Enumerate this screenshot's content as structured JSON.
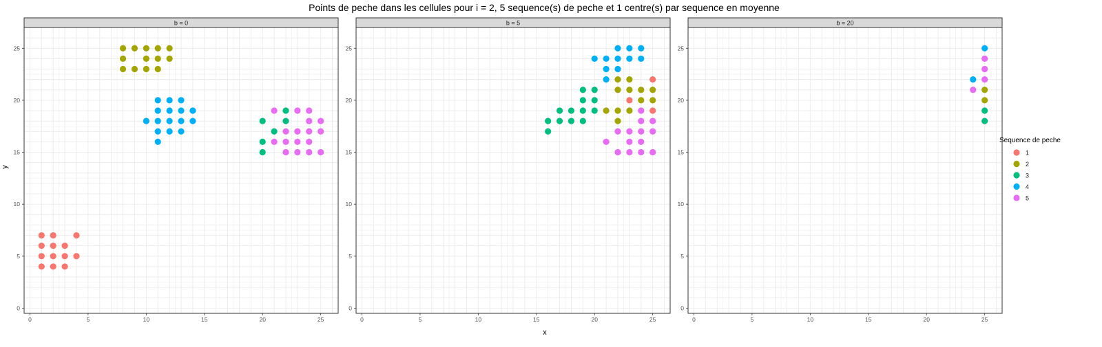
{
  "chart_data": {
    "type": "scatter",
    "title": "Points de peche dans les cellules pour i = 2, 5 sequence(s) de peche et 1 centre(s) par sequence en moyenne",
    "xlabel": "x",
    "ylabel": "y",
    "xlim": [
      -0.5,
      26.5
    ],
    "ylim": [
      -0.5,
      27
    ],
    "x_ticks": [
      0,
      5,
      10,
      15,
      20,
      25
    ],
    "y_ticks": [
      0,
      5,
      10,
      15,
      20,
      25
    ],
    "grid": true,
    "legend": {
      "title": "Sequence de peche",
      "placement": "right",
      "entries": [
        "1",
        "2",
        "3",
        "4",
        "5"
      ]
    },
    "colors": {
      "1": "#F8766D",
      "2": "#A3A500",
      "3": "#00BF7D",
      "4": "#00B0F6",
      "5": "#E76BF3"
    },
    "panels": [
      {
        "label": "b = 0",
        "series": [
          {
            "name": "1",
            "points": [
              [
                1,
                7
              ],
              [
                2,
                7
              ],
              [
                4,
                7
              ],
              [
                1,
                6
              ],
              [
                2,
                6
              ],
              [
                3,
                6
              ],
              [
                1,
                5
              ],
              [
                2,
                5
              ],
              [
                3,
                5
              ],
              [
                4,
                5
              ],
              [
                1,
                4
              ],
              [
                2,
                4
              ],
              [
                3,
                4
              ]
            ]
          },
          {
            "name": "2",
            "points": [
              [
                8,
                25
              ],
              [
                9,
                25
              ],
              [
                10,
                25
              ],
              [
                11,
                25
              ],
              [
                12,
                25
              ],
              [
                8,
                24
              ],
              [
                10,
                24
              ],
              [
                11,
                24
              ],
              [
                12,
                24
              ],
              [
                8,
                23
              ],
              [
                9,
                23
              ],
              [
                10,
                23
              ],
              [
                11,
                23
              ]
            ]
          },
          {
            "name": "4",
            "points": [
              [
                11,
                20
              ],
              [
                12,
                20
              ],
              [
                13,
                20
              ],
              [
                11,
                19
              ],
              [
                12,
                19
              ],
              [
                13,
                19
              ],
              [
                14,
                19
              ],
              [
                10,
                18
              ],
              [
                11,
                18
              ],
              [
                12,
                18
              ],
              [
                13,
                18
              ],
              [
                14,
                18
              ],
              [
                11,
                17
              ],
              [
                12,
                17
              ],
              [
                13,
                17
              ],
              [
                11,
                16
              ]
            ]
          },
          {
            "name": "3",
            "points": [
              [
                20,
                18
              ],
              [
                22,
                18
              ],
              [
                21,
                17
              ],
              [
                20,
                16
              ],
              [
                20,
                15
              ],
              [
                22,
                19
              ]
            ]
          },
          {
            "name": "5",
            "points": [
              [
                21,
                19
              ],
              [
                23,
                19
              ],
              [
                24,
                19
              ],
              [
                24,
                18
              ],
              [
                25,
                18
              ],
              [
                22,
                17
              ],
              [
                23,
                17
              ],
              [
                24,
                17
              ],
              [
                25,
                17
              ],
              [
                21,
                16
              ],
              [
                22,
                16
              ],
              [
                23,
                16
              ],
              [
                24,
                16
              ],
              [
                22,
                15
              ],
              [
                23,
                15
              ],
              [
                24,
                15
              ],
              [
                25,
                15
              ]
            ]
          }
        ]
      },
      {
        "label": "b = 5",
        "series": [
          {
            "name": "4",
            "points": [
              [
                22,
                25
              ],
              [
                23,
                25
              ],
              [
                24,
                25
              ],
              [
                20,
                24
              ],
              [
                21,
                24
              ],
              [
                22,
                24
              ],
              [
                23,
                24
              ],
              [
                24,
                24
              ],
              [
                21,
                23
              ],
              [
                22,
                23
              ],
              [
                21,
                22
              ]
            ]
          },
          {
            "name": "2",
            "points": [
              [
                22,
                22
              ],
              [
                23,
                22
              ],
              [
                22,
                21
              ],
              [
                23,
                21
              ],
              [
                24,
                21
              ],
              [
                25,
                21
              ],
              [
                24,
                20
              ],
              [
                25,
                20
              ],
              [
                21,
                19
              ],
              [
                22,
                19
              ],
              [
                23,
                19
              ],
              [
                22,
                18
              ]
            ]
          },
          {
            "name": "1",
            "points": [
              [
                25,
                22
              ],
              [
                23,
                20
              ],
              [
                25,
                19
              ]
            ]
          },
          {
            "name": "3",
            "points": [
              [
                19,
                21
              ],
              [
                20,
                21
              ],
              [
                19,
                20
              ],
              [
                20,
                20
              ],
              [
                17,
                19
              ],
              [
                18,
                19
              ],
              [
                19,
                19
              ],
              [
                20,
                19
              ],
              [
                16,
                18
              ],
              [
                17,
                18
              ],
              [
                18,
                18
              ],
              [
                19,
                18
              ],
              [
                16,
                17
              ]
            ]
          },
          {
            "name": "5",
            "points": [
              [
                24,
                19
              ],
              [
                24,
                18
              ],
              [
                25,
                18
              ],
              [
                22,
                17
              ],
              [
                23,
                17
              ],
              [
                24,
                17
              ],
              [
                25,
                17
              ],
              [
                21,
                16
              ],
              [
                23,
                16
              ],
              [
                24,
                16
              ],
              [
                22,
                15
              ],
              [
                23,
                15
              ],
              [
                24,
                15
              ],
              [
                25,
                15
              ]
            ]
          }
        ]
      },
      {
        "label": "b = 20",
        "series": [
          {
            "name": "4",
            "points": [
              [
                25,
                25
              ],
              [
                24,
                22
              ]
            ]
          },
          {
            "name": "5",
            "points": [
              [
                25,
                24
              ],
              [
                25,
                23
              ],
              [
                25,
                22
              ],
              [
                24,
                21
              ]
            ]
          },
          {
            "name": "2",
            "points": [
              [
                25,
                21
              ],
              [
                25,
                20
              ]
            ]
          },
          {
            "name": "3",
            "points": [
              [
                25,
                19
              ],
              [
                25,
                18
              ]
            ]
          }
        ]
      }
    ]
  }
}
